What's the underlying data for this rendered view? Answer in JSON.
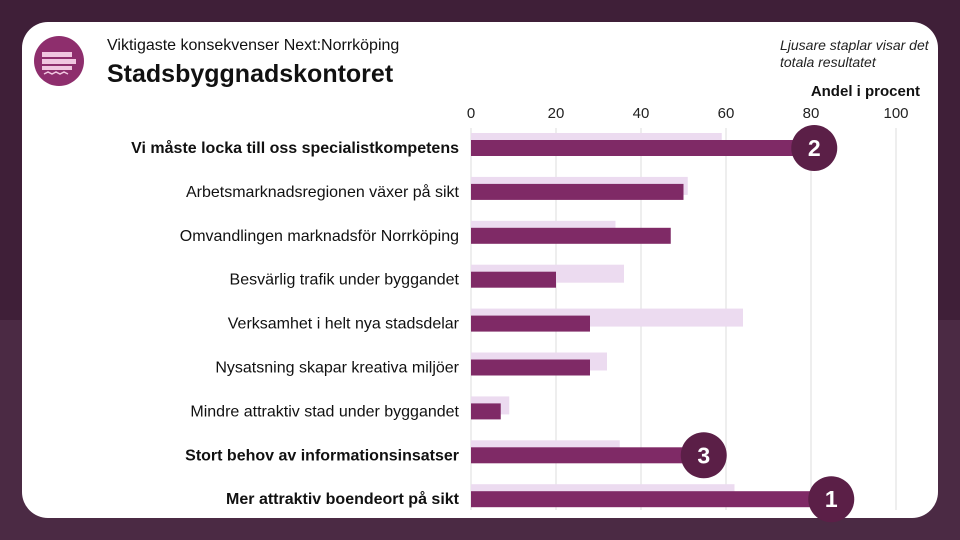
{
  "header": {
    "subtitle": "Viktigaste konsekvenser Next:Norrköping",
    "title": "Stadsbyggnadskontoret",
    "note": "Ljusare staplar visar det totala resultatet",
    "axis_label": "Andel i procent"
  },
  "colors": {
    "dark_bar": "#7f2a66",
    "light_bar": "#ecdbf0",
    "badge": "#5b1f47",
    "grid": "#dddddd"
  },
  "chart_data": {
    "type": "bar",
    "orientation": "horizontal",
    "categories": [
      "Vi måste locka till oss specialistkompetens",
      "Arbetsmarknadsregionen växer på sikt",
      "Omvandlingen marknadsför Norrköping",
      "Besvärlig trafik under byggandet",
      "Verksamhet i helt nya stadsdelar",
      "Nysatsning skapar kreativa miljöer",
      "Mindre attraktiv stad under byggandet",
      "Stort behov av informationsinsatser",
      "Mer attraktiv boendeort på sikt"
    ],
    "bold_categories": [
      0,
      7,
      8
    ],
    "series": [
      {
        "values": [
          59,
          51,
          34,
          36,
          64,
          32,
          9,
          35,
          62
        ]
      },
      {
        "values": [
          77,
          50,
          47,
          20,
          28,
          28,
          7,
          51,
          81
        ]
      }
    ],
    "xticks": [
      0,
      20,
      40,
      60,
      80,
      100
    ],
    "xlim": [
      0,
      100
    ],
    "grid": true,
    "badges": [
      {
        "label": "2",
        "row": 0
      },
      {
        "label": "3",
        "row": 7
      },
      {
        "label": "1",
        "row": 8
      }
    ]
  }
}
